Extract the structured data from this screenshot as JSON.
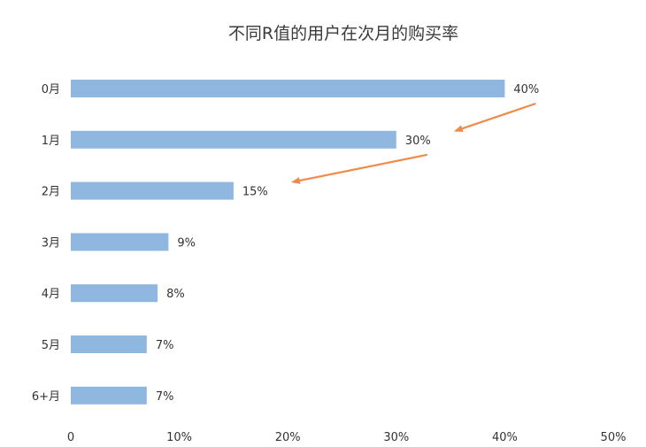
{
  "chart_data": {
    "type": "bar",
    "orientation": "horizontal",
    "title": "不同R值的用户在次月的购买率",
    "categories": [
      "0月",
      "1月",
      "2月",
      "3月",
      "4月",
      "5月",
      "6+月"
    ],
    "values": [
      40,
      30,
      15,
      9,
      8,
      7,
      7
    ],
    "value_labels": [
      "40%",
      "30%",
      "15%",
      "9%",
      "8%",
      "7%",
      "7%"
    ],
    "xlim": [
      0,
      50
    ],
    "x_ticks": [
      0,
      10,
      20,
      30,
      40,
      50
    ],
    "x_tick_labels": [
      "0",
      "10%",
      "20%",
      "30%",
      "40%",
      "50%"
    ],
    "xlabel": "",
    "ylabel": "",
    "grid": false,
    "legend": "none",
    "colors": {
      "bar": "#8fb7df",
      "arrow": "#f08a4b",
      "text": "#333333"
    },
    "annotations": [
      {
        "type": "arrow",
        "from_category": "0月",
        "to_category": "1月"
      },
      {
        "type": "arrow",
        "from_category": "1月",
        "to_category": "2月"
      }
    ]
  }
}
